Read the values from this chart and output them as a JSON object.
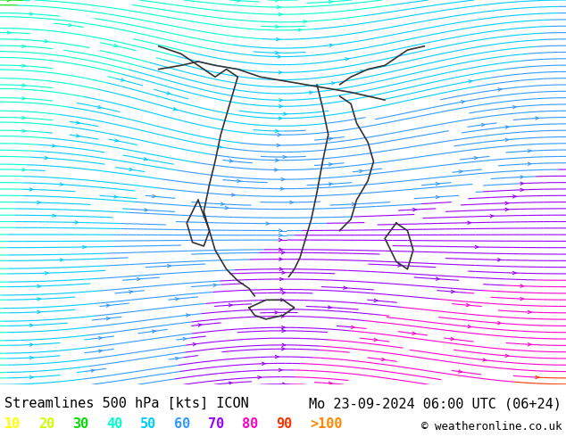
{
  "title_left": "Streamlines 500 hPa [kts] ICON",
  "title_right": "Mo 23-09-2024 06:00 UTC (06+24)",
  "copyright": "© weatheronline.co.uk",
  "colorbar_labels": [
    "10",
    "20",
    "30",
    "40",
    "50",
    "60",
    "70",
    "80",
    "90",
    ">100"
  ],
  "colorbar_colors": [
    "#ffff00",
    "#ccff00",
    "#00ff00",
    "#00ffcc",
    "#00ccff",
    "#0066ff",
    "#cc00ff",
    "#ff00cc",
    "#ff0000",
    "#ff6600"
  ],
  "bg_color": "#aaffaa",
  "map_bg": "#aaffaa",
  "land_color": "#ccffcc",
  "sea_color": "#aaddff",
  "border_color": "#333333",
  "streamline_colors": {
    "slow": "#00cc00",
    "medium": "#ffff00",
    "fast": "#ff8800"
  },
  "figsize": [
    6.34,
    4.9
  ],
  "dpi": 100
}
